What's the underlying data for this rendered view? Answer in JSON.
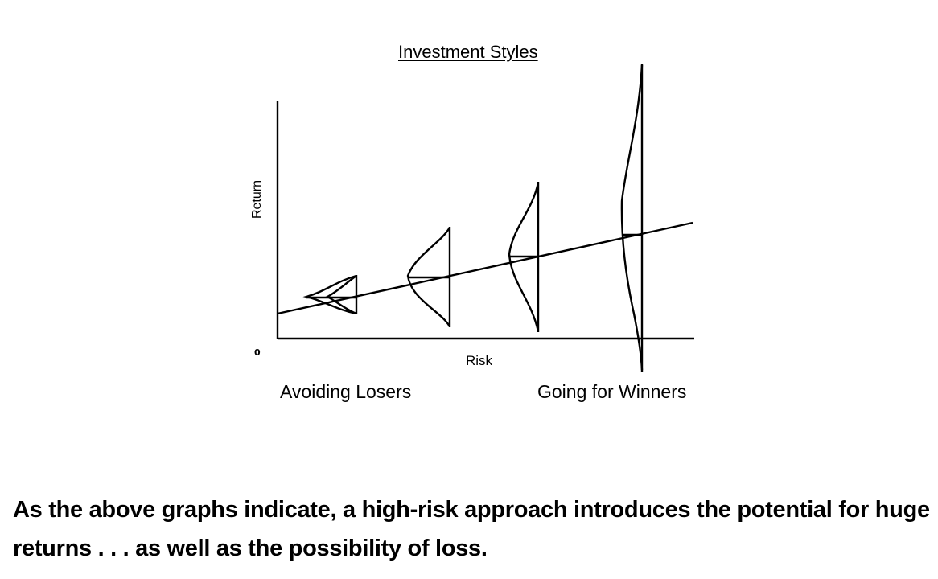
{
  "diagram": {
    "title": "Investment Styles",
    "y_axis_label": "Return",
    "x_axis_label": "Risk",
    "origin_label": "0",
    "left_caption": "Avoiding Losers",
    "right_caption": "Going for Winners",
    "distributions": [
      {
        "risk_level": 1,
        "relative_spread": "smallest"
      },
      {
        "risk_level": 2,
        "relative_spread": "small"
      },
      {
        "risk_level": 3,
        "relative_spread": "large"
      },
      {
        "risk_level": 4,
        "relative_spread": "largest"
      }
    ],
    "trend": "return increases with risk"
  },
  "statement": "As the above graphs indicate, a high-risk approach introduces the potential for huge returns . . . as well as the possibility of loss.",
  "colors": {
    "ink": "#000000",
    "background": "#ffffff"
  }
}
